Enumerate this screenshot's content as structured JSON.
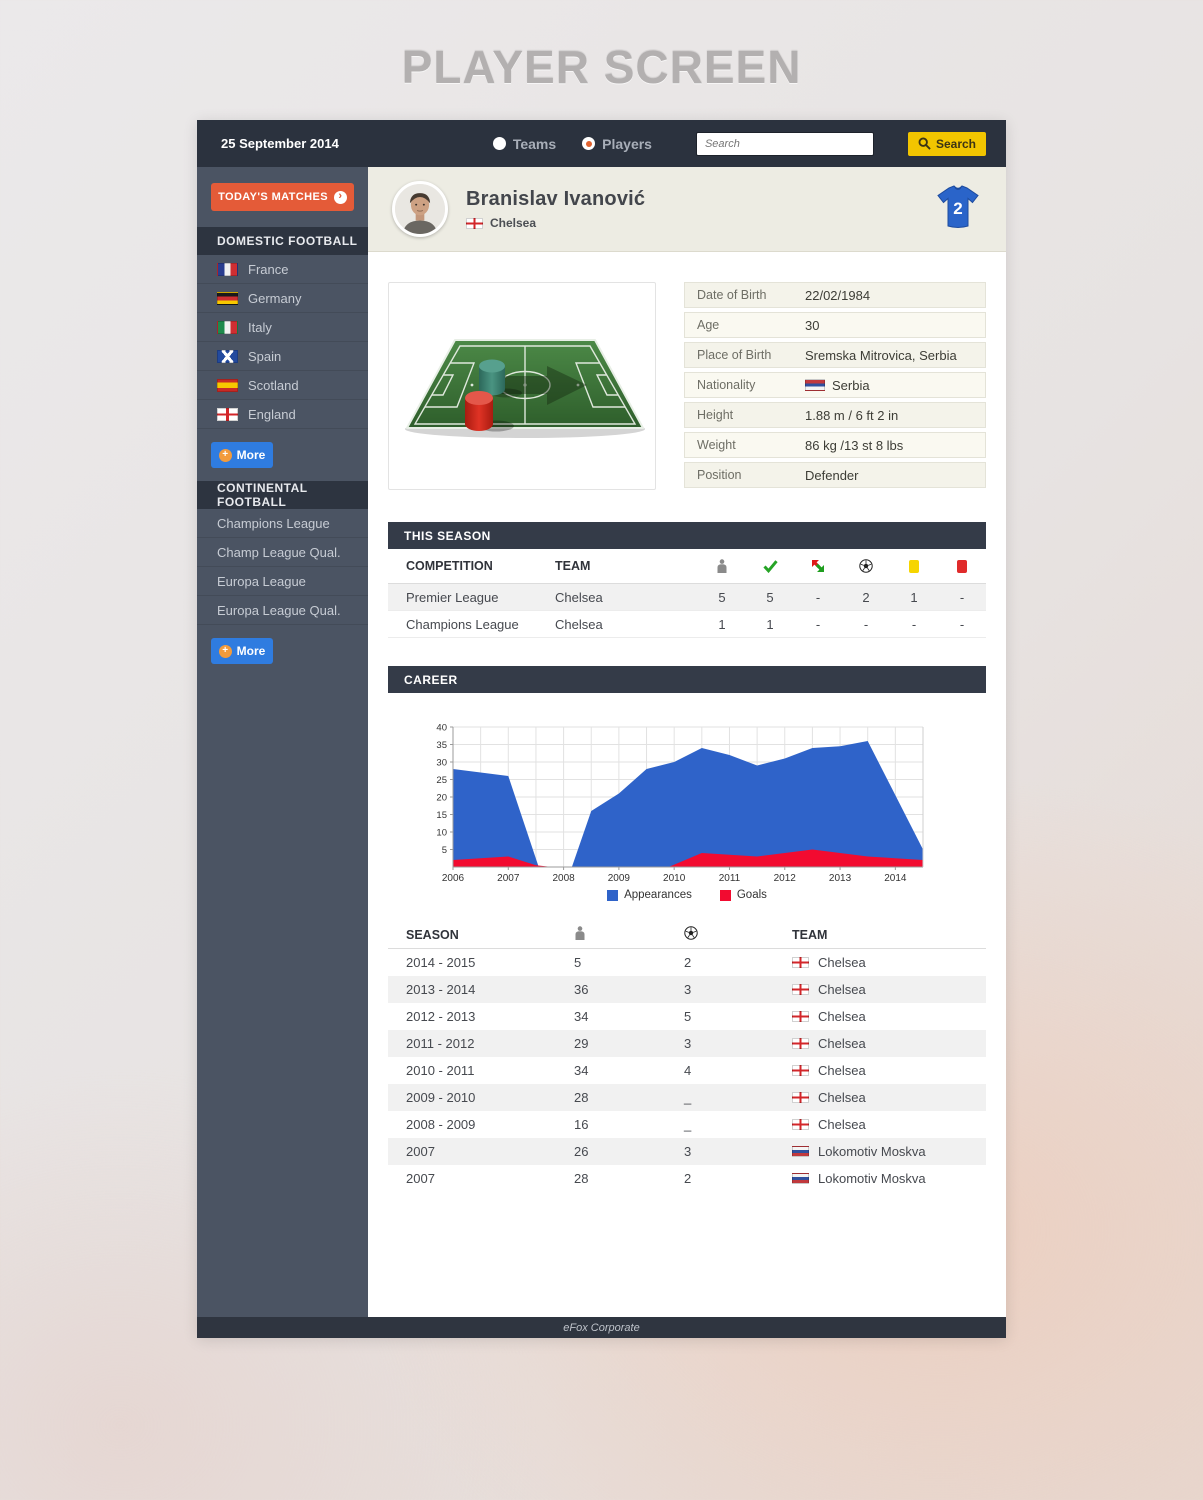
{
  "page": {
    "title": "PLAYER SCREEN",
    "footer": "eFox Corporate"
  },
  "header": {
    "date": "25 September 2014",
    "nav": [
      {
        "label": "Teams",
        "selected": false
      },
      {
        "label": "Players",
        "selected": true
      }
    ],
    "search_placeholder": "Search",
    "search_button": "Search"
  },
  "sidebar": {
    "todays_matches": "TODAY'S MATCHES",
    "domestic": {
      "title": "DOMESTIC FOOTBALL",
      "items": [
        {
          "label": "France",
          "flag": "france"
        },
        {
          "label": "Germany",
          "flag": "germany"
        },
        {
          "label": "Italy",
          "flag": "italy"
        },
        {
          "label": "Spain",
          "flag": "scotland-saltire"
        },
        {
          "label": "Scotland",
          "flag": "spain"
        },
        {
          "label": "England",
          "flag": "england"
        }
      ],
      "more": "More"
    },
    "continental": {
      "title": "CONTINENTAL FOOTBALL",
      "items": [
        {
          "label": "Champions League"
        },
        {
          "label": "Champ League Qual."
        },
        {
          "label": "Europa League"
        },
        {
          "label": "Europa League Qual."
        }
      ],
      "more": "More"
    }
  },
  "player": {
    "name": "Branislav Ivanović",
    "club": "Chelsea",
    "club_flag": "england",
    "jersey_number": "2"
  },
  "profile": {
    "rows": [
      {
        "label": "Date of Birth",
        "value": "22/02/1984"
      },
      {
        "label": "Age",
        "value": "30"
      },
      {
        "label": "Place of Birth",
        "value": "Sremska Mitrovica, Serbia"
      },
      {
        "label": "Nationality",
        "value": "Serbia",
        "flag": "serbia"
      },
      {
        "label": "Height",
        "value": "1.88 m / 6 ft  2 in"
      },
      {
        "label": "Weight",
        "value": "86 kg /13 st 8 lbs"
      },
      {
        "label": "Position",
        "value": "Defender"
      }
    ]
  },
  "this_season": {
    "title": "THIS SEASON",
    "columns": {
      "competition": "COMPETITION",
      "team": "TEAM"
    },
    "icon_columns": [
      "appearances",
      "starts",
      "substitutions",
      "goals",
      "yellow-cards",
      "red-cards"
    ],
    "rows": [
      {
        "competition": "Premier League",
        "team": "Chelsea",
        "values": [
          "5",
          "5",
          "-",
          "2",
          "1",
          "-"
        ]
      },
      {
        "competition": "Champions League",
        "team": "Chelsea",
        "values": [
          "1",
          "1",
          "-",
          "-",
          "-",
          "-"
        ]
      }
    ]
  },
  "career": {
    "title": "CAREER"
  },
  "chart_data": {
    "type": "area",
    "title": "",
    "xlabel": "",
    "ylabel": "",
    "xlim": [
      2006,
      2014.5
    ],
    "ylim": [
      0,
      40
    ],
    "x_ticks": [
      2006,
      2007,
      2008,
      2009,
      2010,
      2011,
      2012,
      2013,
      2014
    ],
    "y_ticks": [
      5,
      10,
      15,
      20,
      25,
      30,
      35,
      40
    ],
    "grid": true,
    "legend_position": "bottom",
    "series": [
      {
        "name": "Appearances",
        "color": "#2f63c9",
        "points": [
          [
            2006,
            28
          ],
          [
            2007,
            26
          ],
          [
            2007.55,
            0
          ],
          [
            2008.15,
            0
          ],
          [
            2008.5,
            16
          ],
          [
            2009,
            21
          ],
          [
            2009.5,
            28
          ],
          [
            2010,
            30
          ],
          [
            2010.5,
            34
          ],
          [
            2011,
            32
          ],
          [
            2011.5,
            29
          ],
          [
            2012,
            31
          ],
          [
            2012.5,
            34
          ],
          [
            2013,
            34.5
          ],
          [
            2013.5,
            36
          ],
          [
            2014.5,
            5
          ]
        ]
      },
      {
        "name": "Goals",
        "color": "#f20b30",
        "points": [
          [
            2006,
            2
          ],
          [
            2007,
            3
          ],
          [
            2007.5,
            0.5
          ],
          [
            2007.8,
            0
          ],
          [
            2009.9,
            0
          ],
          [
            2010.5,
            4
          ],
          [
            2011,
            3.5
          ],
          [
            2011.5,
            3
          ],
          [
            2012,
            4
          ],
          [
            2012.5,
            5
          ],
          [
            2013,
            4
          ],
          [
            2013.5,
            3
          ],
          [
            2014.5,
            2
          ]
        ]
      }
    ]
  },
  "career_table": {
    "columns": {
      "season": "SEASON",
      "team": "TEAM"
    },
    "rows": [
      {
        "season": "2014 - 2015",
        "apps": "5",
        "goals": "2",
        "team": "Chelsea",
        "flag": "england"
      },
      {
        "season": "2013 - 2014",
        "apps": "36",
        "goals": "3",
        "team": "Chelsea",
        "flag": "england"
      },
      {
        "season": "2012 - 2013",
        "apps": "34",
        "goals": "5",
        "team": "Chelsea",
        "flag": "england"
      },
      {
        "season": "2011 - 2012",
        "apps": "29",
        "goals": "3",
        "team": "Chelsea",
        "flag": "england"
      },
      {
        "season": "2010 - 2011",
        "apps": "34",
        "goals": "4",
        "team": "Chelsea",
        "flag": "england"
      },
      {
        "season": "2009 - 2010",
        "apps": "28",
        "goals": "_",
        "team": "Chelsea",
        "flag": "england"
      },
      {
        "season": "2008 - 2009",
        "apps": "16",
        "goals": "_",
        "team": "Chelsea",
        "flag": "england"
      },
      {
        "season": "2007",
        "apps": "26",
        "goals": "3",
        "team": "Lokomotiv Moskva",
        "flag": "russia"
      },
      {
        "season": "2007",
        "apps": "28",
        "goals": "2",
        "team": "Lokomotiv Moskva",
        "flag": "russia"
      }
    ]
  }
}
